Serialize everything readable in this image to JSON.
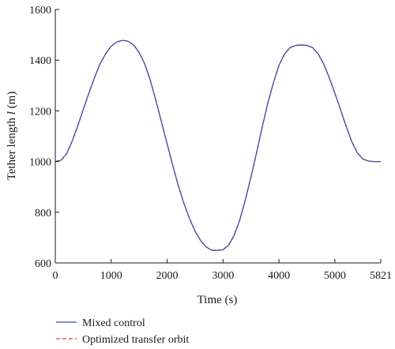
{
  "chart_data": {
    "type": "line",
    "xlabel": "Time (s)",
    "ylabel_prefix": "Tether length ",
    "ylabel_var": "l",
    "ylabel_unit": " (m)",
    "xlim": [
      0,
      5821
    ],
    "ylim": [
      600,
      1600
    ],
    "xticks": [
      0,
      1000,
      2000,
      3000,
      4000,
      5000,
      5821
    ],
    "yticks": [
      600,
      800,
      1000,
      1200,
      1400,
      1600
    ],
    "grid": false,
    "legend_position": "bottom-left",
    "series": [
      {
        "name": "Mixed control",
        "color": "#3b4da8",
        "style": "solid",
        "x": [
          0,
          100,
          200,
          300,
          400,
          500,
          600,
          700,
          800,
          900,
          1000,
          1100,
          1200,
          1300,
          1400,
          1500,
          1600,
          1700,
          1800,
          1900,
          2000,
          2100,
          2200,
          2300,
          2400,
          2500,
          2600,
          2700,
          2800,
          2900,
          3000,
          3100,
          3200,
          3300,
          3400,
          3500,
          3600,
          3700,
          3800,
          3900,
          4000,
          4100,
          4200,
          4300,
          4400,
          4500,
          4600,
          4700,
          4800,
          4900,
          5000,
          5100,
          5200,
          5300,
          5400,
          5500,
          5600,
          5700,
          5821
        ],
        "y": [
          1000,
          1005,
          1030,
          1080,
          1140,
          1205,
          1270,
          1330,
          1385,
          1425,
          1455,
          1472,
          1478,
          1475,
          1460,
          1430,
          1385,
          1320,
          1240,
          1155,
          1070,
          985,
          905,
          835,
          775,
          725,
          688,
          663,
          650,
          650,
          652,
          670,
          710,
          770,
          850,
          940,
          1035,
          1135,
          1230,
          1310,
          1380,
          1425,
          1450,
          1458,
          1460,
          1458,
          1450,
          1425,
          1385,
          1330,
          1270,
          1205,
          1140,
          1080,
          1035,
          1010,
          1002,
          1000,
          1000
        ]
      },
      {
        "name": "Optimized transfer orbit",
        "color": "#e53935",
        "style": "dashed",
        "x": [
          0,
          100,
          200,
          300,
          400,
          500,
          600,
          700,
          800,
          900,
          1000,
          1100,
          1200,
          1300,
          1400,
          1500,
          1600,
          1700,
          1800,
          1900,
          2000,
          2100,
          2200,
          2300,
          2400,
          2500,
          2600,
          2700,
          2800,
          2900,
          3000,
          3100,
          3200,
          3300,
          3400,
          3500,
          3600,
          3700,
          3800,
          3900,
          4000,
          4100,
          4200,
          4300,
          4400,
          4500,
          4600,
          4700,
          4800,
          4900,
          5000,
          5100,
          5200,
          5300,
          5400,
          5500,
          5600,
          5700,
          5821
        ],
        "y": [
          1000,
          1005,
          1030,
          1080,
          1140,
          1205,
          1270,
          1330,
          1385,
          1425,
          1455,
          1472,
          1478,
          1475,
          1460,
          1430,
          1385,
          1320,
          1240,
          1155,
          1070,
          985,
          905,
          835,
          775,
          725,
          688,
          663,
          650,
          650,
          652,
          670,
          710,
          770,
          850,
          940,
          1035,
          1135,
          1230,
          1310,
          1380,
          1425,
          1450,
          1458,
          1460,
          1458,
          1450,
          1425,
          1385,
          1330,
          1270,
          1205,
          1140,
          1080,
          1035,
          1010,
          1002,
          1000,
          1000
        ]
      }
    ]
  }
}
